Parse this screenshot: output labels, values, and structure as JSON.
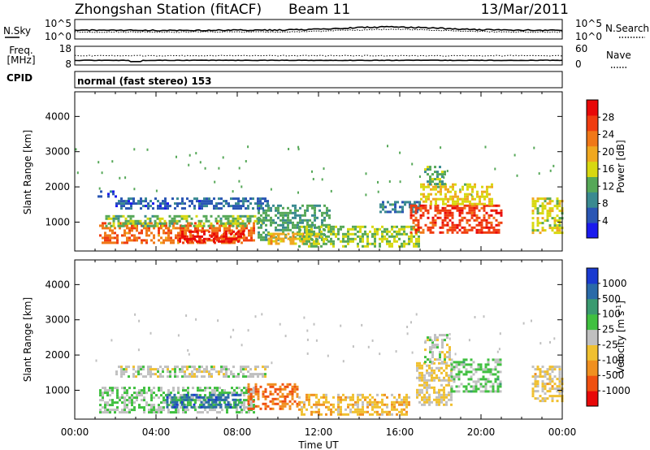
{
  "header": {
    "station": "Zhongshan Station (fitACF)",
    "beam": "Beam 11",
    "date": "13/Mar/2011"
  },
  "top_panels": {
    "nsky_label": "N.Sky",
    "nsky_ticks": [
      "10^5",
      "10^0"
    ],
    "nsearch_label": "N.Search",
    "nsearch_ticks": [
      "10^5",
      "10^0"
    ],
    "freq_label_line1": "Freq.",
    "freq_label_line2": "[MHz]",
    "freq_ticks": [
      "18",
      "8"
    ],
    "nave_label": "Nave",
    "nave_ticks": [
      "60",
      "0"
    ],
    "cpid_label": "CPID",
    "cpid_text": "normal (fast stereo) 153"
  },
  "chart_data": [
    {
      "type": "heatmap",
      "title": "",
      "xlabel": "",
      "ylabel": "Slant Range [km]",
      "xlim": [
        "00:00",
        "24:00"
      ],
      "ylim": [
        180,
        4700
      ],
      "yticks": [
        "1000",
        "2000",
        "3000",
        "4000"
      ],
      "colorbar": {
        "label": "Power [dB]",
        "ticks": [
          "28",
          "24",
          "20",
          "16",
          "12",
          "8",
          "4"
        ],
        "range": [
          0,
          32
        ],
        "colors": [
          "#1a1aee",
          "#2a56b4",
          "#3a8a90",
          "#56a858",
          "#d8d810",
          "#f0a820",
          "#f07818",
          "#f03c10",
          "#e80808"
        ]
      },
      "regions": [
        {
          "t0": 1.2,
          "t1": 8.8,
          "r0": 400,
          "r1": 1000,
          "value": 24
        },
        {
          "t0": 5.0,
          "t1": 8.3,
          "r0": 420,
          "r1": 760,
          "value": 30
        },
        {
          "t0": 1.5,
          "t1": 9.2,
          "r0": 900,
          "r1": 1200,
          "value": 13
        },
        {
          "t0": 2.0,
          "t1": 9.5,
          "r0": 1400,
          "r1": 1700,
          "value": 6
        },
        {
          "t0": 1.0,
          "t1": 2.0,
          "r0": 1700,
          "r1": 1900,
          "value": 5
        },
        {
          "t0": 9.0,
          "t1": 12.5,
          "r0": 500,
          "r1": 1500,
          "value": 11
        },
        {
          "t0": 9.5,
          "t1": 12.0,
          "r0": 400,
          "r1": 700,
          "value": 19
        },
        {
          "t0": 11.0,
          "t1": 17.0,
          "r0": 300,
          "r1": 900,
          "value": 14
        },
        {
          "t0": 15.0,
          "t1": 17.0,
          "r0": 1300,
          "r1": 1600,
          "value": 8
        },
        {
          "t0": 16.5,
          "t1": 21.0,
          "r0": 700,
          "r1": 1500,
          "value": 27
        },
        {
          "t0": 17.0,
          "t1": 20.5,
          "r0": 1500,
          "r1": 2100,
          "value": 17
        },
        {
          "t0": 17.2,
          "t1": 18.2,
          "r0": 2100,
          "r1": 2600,
          "value": 12
        },
        {
          "t0": 22.5,
          "t1": 24.0,
          "r0": 700,
          "r1": 1700,
          "value": 16
        }
      ]
    },
    {
      "type": "heatmap",
      "title": "",
      "xlabel": "Time UT",
      "ylabel": "Slant Range [km]",
      "xlim": [
        "00:00",
        "24:00"
      ],
      "xticks": [
        "00:00",
        "04:00",
        "08:00",
        "12:00",
        "16:00",
        "20:00",
        "00:00"
      ],
      "ylim": [
        180,
        4700
      ],
      "yticks": [
        "1000",
        "2000",
        "3000",
        "4000"
      ],
      "colorbar": {
        "label": "Velocity [m s^-1]",
        "ticks": [
          "1000",
          "500",
          "100",
          "25",
          "-25",
          "-100",
          "-500",
          "-1000"
        ],
        "range": [
          -1200,
          1200
        ],
        "colors": [
          "#e80808",
          "#f05010",
          "#f09020",
          "#f0c030",
          "#c0c0c0",
          "#40c040",
          "#3a9a70",
          "#2a6aa8",
          "#1a3ad0"
        ]
      },
      "regions": [
        {
          "t0": 1.2,
          "t1": 8.8,
          "r0": 400,
          "r1": 1100,
          "value": 150
        },
        {
          "t0": 4.5,
          "t1": 8.2,
          "r0": 500,
          "r1": 900,
          "value": 800
        },
        {
          "t0": 2.0,
          "t1": 9.5,
          "r0": 1400,
          "r1": 1700,
          "value": 0
        },
        {
          "t0": 8.5,
          "t1": 11.0,
          "r0": 500,
          "r1": 1200,
          "value": -700
        },
        {
          "t0": 11.0,
          "t1": 16.5,
          "r0": 300,
          "r1": 900,
          "value": -300
        },
        {
          "t0": 16.8,
          "t1": 18.5,
          "r0": 600,
          "r1": 1800,
          "value": -150
        },
        {
          "t0": 18.5,
          "t1": 21.0,
          "r0": 1000,
          "r1": 1900,
          "value": 200
        },
        {
          "t0": 17.2,
          "t1": 18.5,
          "r0": 1800,
          "r1": 2600,
          "value": 0
        },
        {
          "t0": 22.5,
          "t1": 24.0,
          "r0": 700,
          "r1": 1700,
          "value": -200
        }
      ]
    }
  ]
}
